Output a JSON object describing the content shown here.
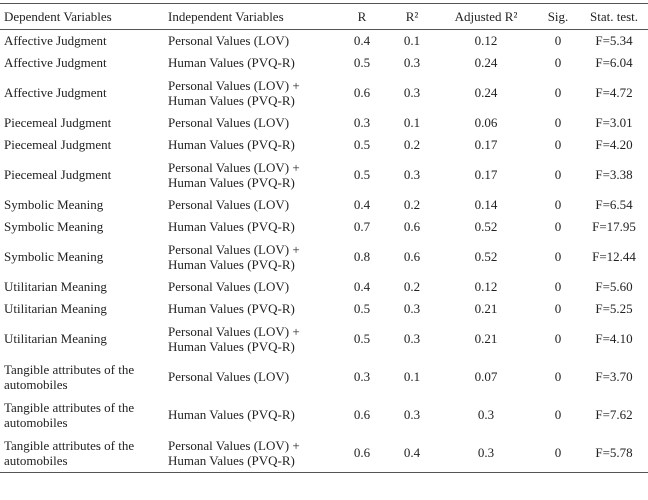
{
  "table": {
    "header": [
      "Dependent Variables",
      "Independent Variables",
      "R",
      "R²",
      "Adjusted R²",
      "Sig.",
      "Stat. test."
    ],
    "rows": [
      [
        "Affective Judgment",
        "Personal Values (LOV)",
        "0.4",
        "0.1",
        "0.12",
        "0",
        "F=5.34"
      ],
      [
        "Affective Judgment",
        "Human Values (PVQ-R)",
        "0.5",
        "0.3",
        "0.24",
        "0",
        "F=6.04"
      ],
      [
        "Affective Judgment",
        "Personal Values (LOV) + Human Values (PVQ-R)",
        "0.6",
        "0.3",
        "0.24",
        "0",
        "F=4.72"
      ],
      [
        "Piecemeal Judgment",
        "Personal Values (LOV)",
        "0.3",
        "0.1",
        "0.06",
        "0",
        "F=3.01"
      ],
      [
        "Piecemeal Judgment",
        "Human Values (PVQ-R)",
        "0.5",
        "0.2",
        "0.17",
        "0",
        "F=4.20"
      ],
      [
        "Piecemeal Judgment",
        "Personal Values (LOV) + Human Values (PVQ-R)",
        "0.5",
        "0.3",
        "0.17",
        "0",
        "F=3.38"
      ],
      [
        "Symbolic Meaning",
        "Personal Values (LOV)",
        "0.4",
        "0.2",
        "0.14",
        "0",
        "F=6.54"
      ],
      [
        "Symbolic Meaning",
        "Human Values (PVQ-R)",
        "0.7",
        "0.6",
        "0.52",
        "0",
        "F=17.95"
      ],
      [
        "Symbolic Meaning",
        "Personal Values (LOV) + Human Values (PVQ-R)",
        "0.8",
        "0.6",
        "0.52",
        "0",
        "F=12.44"
      ],
      [
        "Utilitarian Meaning",
        "Personal Values (LOV)",
        "0.4",
        "0.2",
        "0.12",
        "0",
        "F=5.60"
      ],
      [
        "Utilitarian Meaning",
        "Human Values (PVQ-R)",
        "0.5",
        "0.3",
        "0.21",
        "0",
        "F=5.25"
      ],
      [
        "Utilitarian Meaning",
        "Personal Values (LOV) + Human Values (PVQ-R)",
        "0.5",
        "0.3",
        "0.21",
        "0",
        "F=4.10"
      ],
      [
        "Tangible attributes of the automobiles",
        "Personal Values (LOV)",
        "0.3",
        "0.1",
        "0.07",
        "0",
        "F=3.70"
      ],
      [
        "Tangible attributes of the automobiles",
        "Human Values (PVQ-R)",
        "0.6",
        "0.3",
        "0.3",
        "0",
        "F=7.62"
      ],
      [
        "Tangible attributes of the automobiles",
        "Personal Values (LOV) + Human Values (PVQ-R)",
        "0.6",
        "0.4",
        "0.3",
        "0",
        "F=5.78"
      ]
    ]
  }
}
